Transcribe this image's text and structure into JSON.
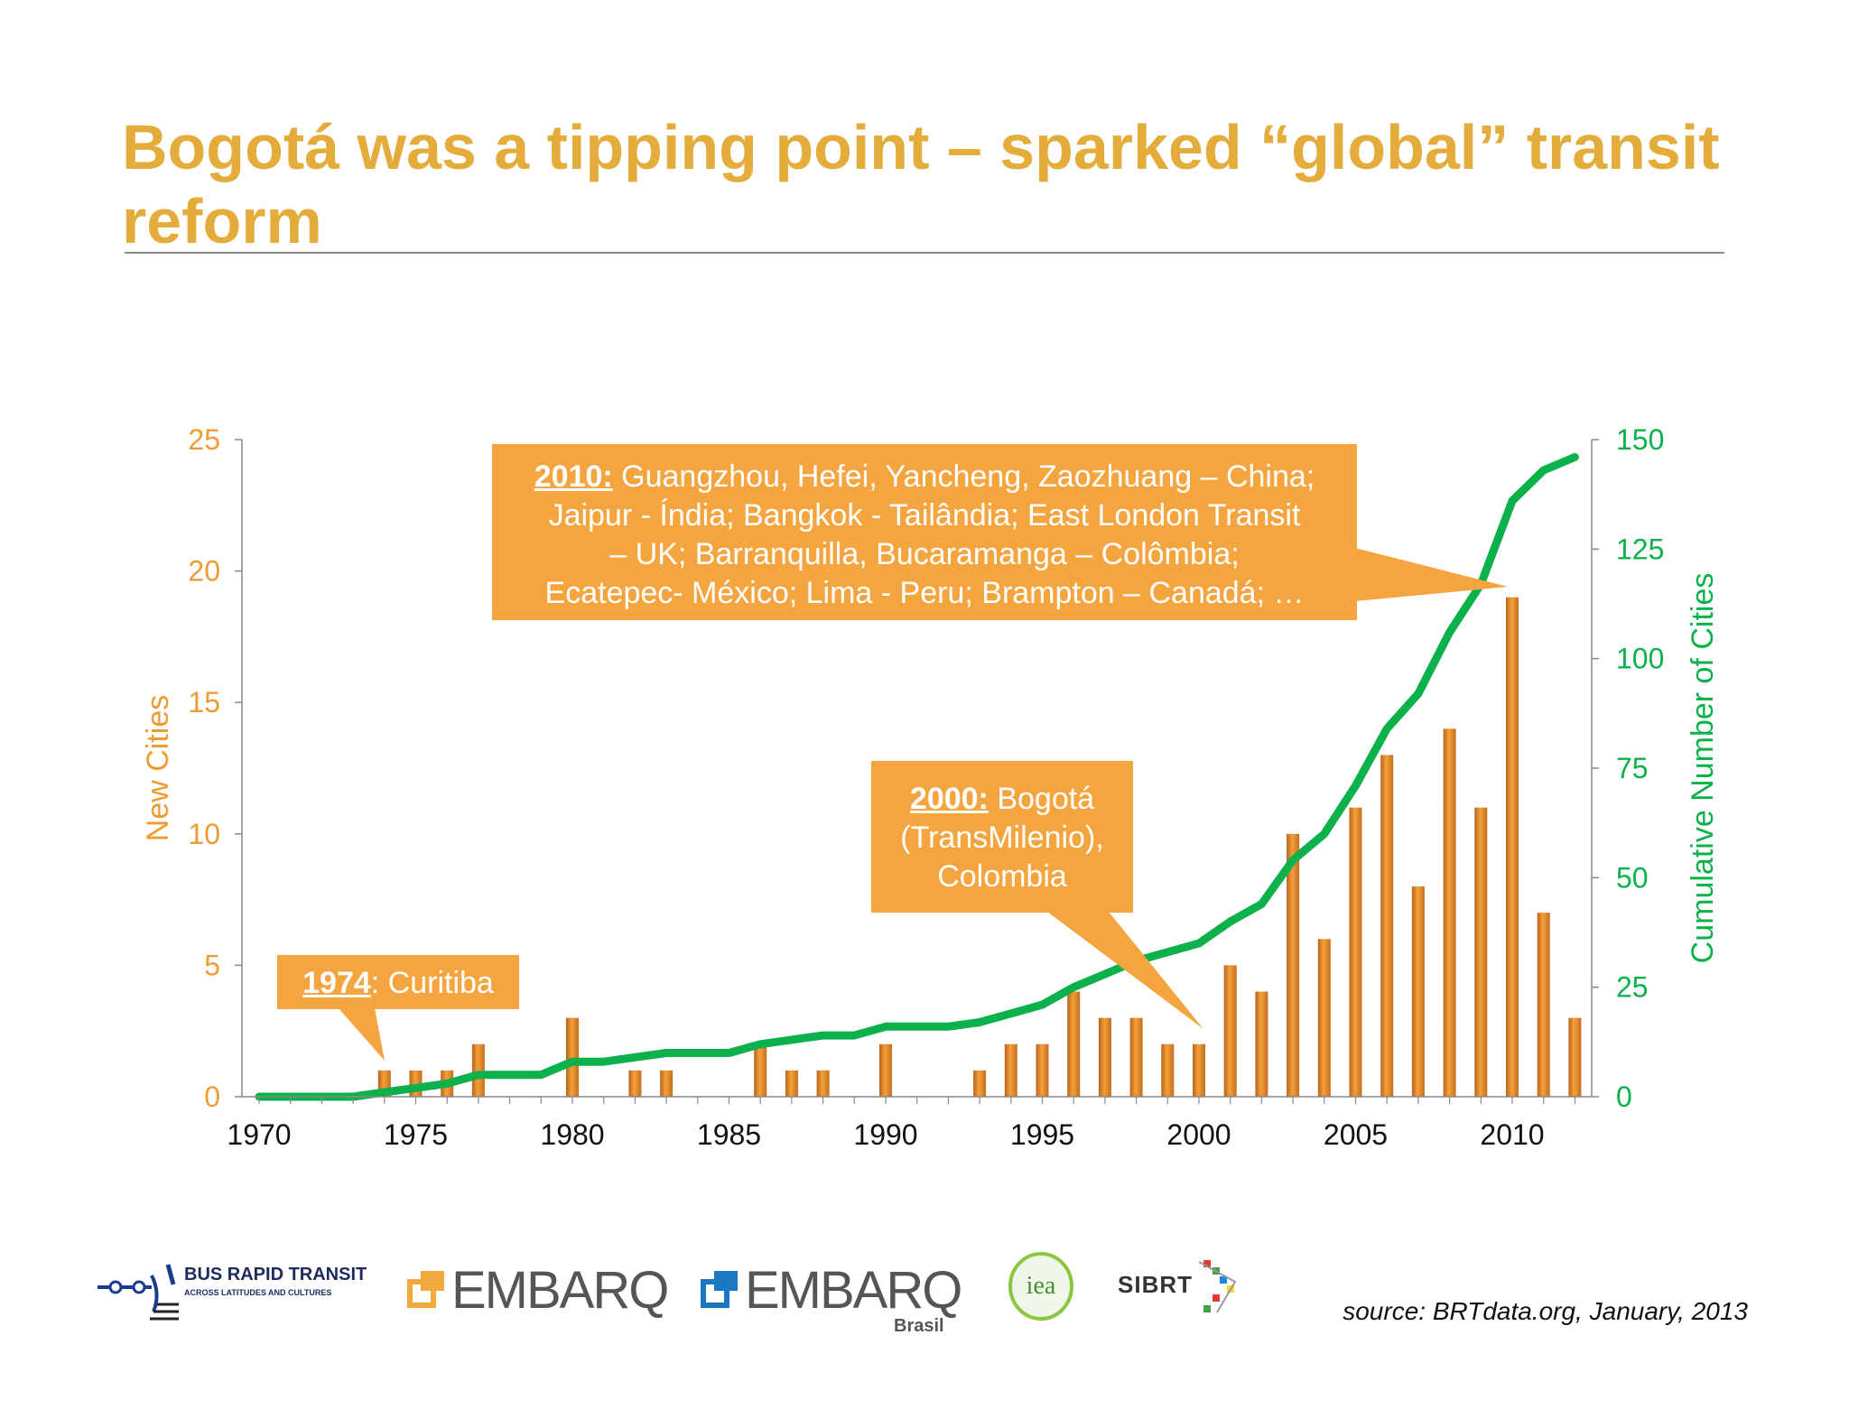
{
  "title": "Bogotá was a tipping point – sparked “global” transit reform",
  "chart_data": {
    "type": "bar+line",
    "years": [
      1970,
      1971,
      1972,
      1973,
      1974,
      1975,
      1976,
      1977,
      1978,
      1979,
      1980,
      1981,
      1982,
      1983,
      1984,
      1985,
      1986,
      1987,
      1988,
      1989,
      1990,
      1991,
      1992,
      1993,
      1994,
      1995,
      1996,
      1997,
      1998,
      1999,
      2000,
      2001,
      2002,
      2003,
      2004,
      2005,
      2006,
      2007,
      2008,
      2009,
      2010,
      2011,
      2012
    ],
    "series": [
      {
        "name": "New Cities",
        "type": "bar",
        "axis": "left",
        "color": "#EE9B32",
        "values": [
          0,
          0,
          0,
          0,
          1,
          1,
          1,
          2,
          0,
          0,
          3,
          0,
          1,
          1,
          0,
          0,
          2,
          1,
          1,
          0,
          2,
          0,
          0,
          1,
          2,
          2,
          4,
          3,
          3,
          2,
          2,
          5,
          4,
          10,
          6,
          11,
          13,
          8,
          14,
          11,
          19,
          7,
          3
        ]
      },
      {
        "name": "Cumulative Number of Cities",
        "type": "line",
        "axis": "right",
        "color": "#0CB14B",
        "values": [
          0,
          0,
          0,
          0,
          1,
          2,
          3,
          5,
          5,
          5,
          8,
          8,
          9,
          10,
          10,
          10,
          12,
          13,
          14,
          14,
          16,
          16,
          16,
          17,
          19,
          21,
          25,
          28,
          31,
          33,
          35,
          40,
          44,
          54,
          60,
          71,
          84,
          92,
          106,
          117,
          136,
          143,
          146
        ]
      }
    ],
    "x_ticks": [
      "1970",
      "1975",
      "1980",
      "1985",
      "1990",
      "1995",
      "2000",
      "2005",
      "2010"
    ],
    "y_left": {
      "label": "New Cities",
      "range": [
        0,
        25
      ],
      "ticks": [
        "0",
        "5",
        "10",
        "15",
        "20",
        "25"
      ]
    },
    "y_right": {
      "label": "Cumulative Number of Cities",
      "range": [
        0,
        150
      ],
      "ticks": [
        "0",
        "25",
        "50",
        "75",
        "100",
        "125",
        "150"
      ]
    },
    "annotations": [
      {
        "year_label": "1974:",
        "text": "Curitiba",
        "points_to": "1974"
      },
      {
        "year_label": "2000:",
        "text": "Bogotá (TransMilenio), Colombia",
        "points_to": "2000"
      },
      {
        "year_label": "2010:",
        "text": "Guangzhou, Hefei, Yancheng, Zaozhuang – China; Jaipur - Índia;  Bangkok - Tailândia; East London Transit – UK; Barranquilla, Bucaramanga – Colômbia; Ecatepec- México; Lima - Peru; Brampton – Canadá; …",
        "points_to": "2010"
      }
    ]
  },
  "callouts": {
    "c1974": {
      "year": "1974",
      "text": ": Curitiba"
    },
    "c2000": {
      "year": "2000:",
      "line1": " Bogotá",
      "line2": "(TransMilenio),",
      "line3": "Colombia"
    },
    "c2010": {
      "year": "2010:",
      "line1": " Guangzhou, Hefei, Yancheng, Zaozhuang – China;",
      "line2": "Jaipur - Índia;  Bangkok - Tailândia; East London Transit",
      "line3": "– UK; Barranquilla, Bucaramanga – Colômbia;",
      "line4": "Ecatepec- México; Lima - Peru; Brampton – Canadá; …"
    }
  },
  "logos": {
    "brt_main": "BUS RAPID TRANSIT",
    "brt_sub": "ACROSS LATITUDES AND CULTURES",
    "embarq": "EMBARQ",
    "embarq_brasil": "EMBARQ",
    "embarq_brasil_sub": "Brasil",
    "iea": "iea",
    "sibrt": "SIBRT"
  },
  "colors": {
    "title": "#E3AC3B",
    "bar": "#EE9B32",
    "line": "#0CB14B",
    "callout": "#F5A53F"
  },
  "source": "source: BRTdata.org, January, 2013"
}
